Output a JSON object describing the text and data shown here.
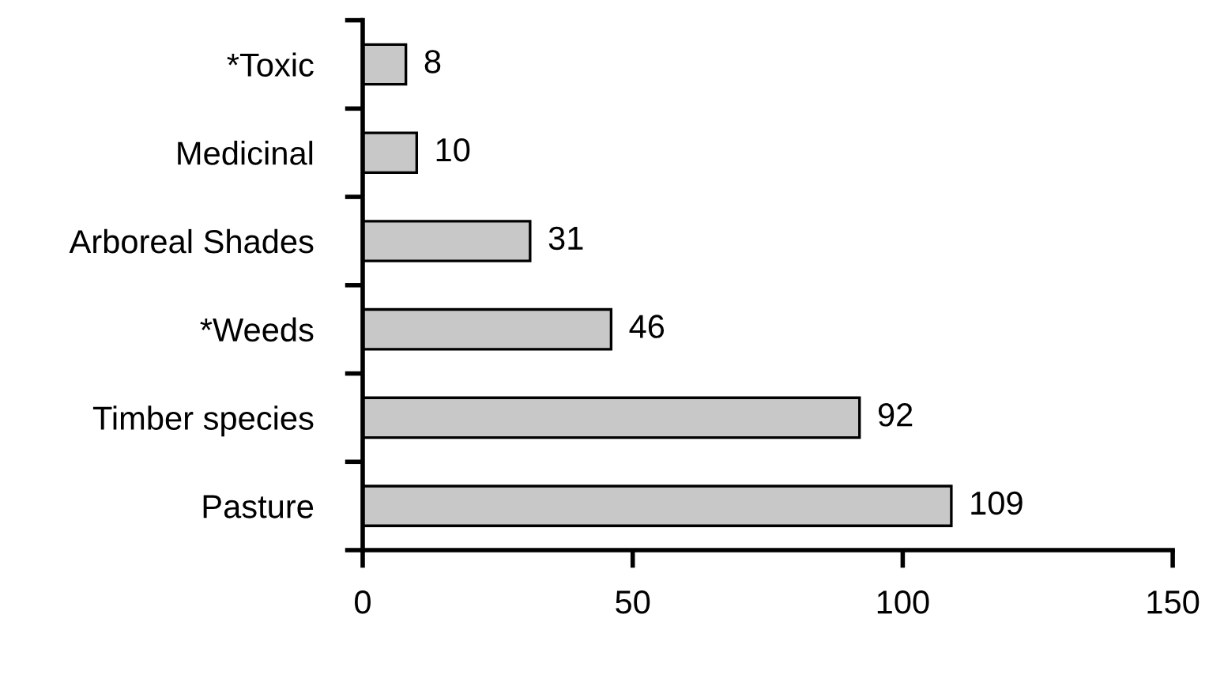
{
  "chart_data": {
    "type": "bar",
    "orientation": "horizontal",
    "categories": [
      "*Toxic",
      "Medicinal",
      "Arboreal Shades",
      "*Weeds",
      "Timber species",
      "Pasture"
    ],
    "values": [
      8,
      10,
      31,
      46,
      92,
      109
    ],
    "color": "#c8c8c8",
    "xlim": [
      0,
      150
    ],
    "xticks": [
      0,
      50,
      100,
      150
    ],
    "data_labels": true,
    "grid": false,
    "legend": false
  }
}
